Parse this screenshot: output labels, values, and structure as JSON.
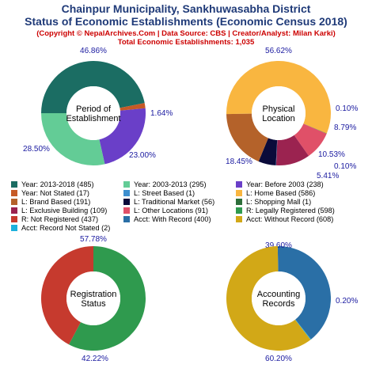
{
  "header": {
    "title_line1": "Chainpur Municipality, Sankhuwasabha District",
    "title_line2": "Status of Economic Establishments (Economic Census 2018)",
    "copyright": "(Copyright © NepalArchives.Com | Data Source: CBS | Creator/Analyst: Milan Karki)",
    "total": "Total Economic Establishments: 1,035"
  },
  "chart_data": [
    {
      "type": "pie",
      "center_label": [
        "Period of",
        "Establishment"
      ],
      "slices": [
        {
          "label": "Year: 2013-2018",
          "value": 485,
          "pct": "46.86%",
          "color": "#1b6d63"
        },
        {
          "label": "Year: Not Stated",
          "value": 17,
          "pct": "1.64%",
          "color": "#c65a26"
        },
        {
          "label": "Year: Before 2003",
          "value": 238,
          "pct": "23.00%",
          "color": "#6a3fc8"
        },
        {
          "label": "Year: 2003-2013",
          "value": 295,
          "pct": "28.50%",
          "color": "#63cc96"
        }
      ]
    },
    {
      "type": "pie",
      "center_label": [
        "Physical",
        "Location"
      ],
      "slices": [
        {
          "label": "L: Home Based",
          "value": 586,
          "pct": "56.62%",
          "color": "#f9b640"
        },
        {
          "label": "L: Shopping Mall",
          "value": 1,
          "pct": "0.10%",
          "color": "#2e6e3a"
        },
        {
          "label": "L: Other Locations",
          "value": 91,
          "pct": "8.79%",
          "color": "#e05068"
        },
        {
          "label": "L: Exclusive Building",
          "value": 109,
          "pct": "10.53%",
          "color": "#9b2350"
        },
        {
          "label": "L: Street Based",
          "value": 1,
          "pct": "0.10%",
          "color": "#3c8fcf"
        },
        {
          "label": "L: Traditional Market",
          "value": 56,
          "pct": "5.41%",
          "color": "#0b0b3a"
        },
        {
          "label": "L: Brand Based",
          "value": 191,
          "pct": "18.45%",
          "color": "#b4622a"
        }
      ]
    },
    {
      "type": "pie",
      "center_label": [
        "Registration",
        "Status"
      ],
      "slices": [
        {
          "label": "R: Legally Registered",
          "value": 598,
          "pct": "57.78%",
          "color": "#2f9a4e"
        },
        {
          "label": "R: Not Registered",
          "value": 437,
          "pct": "42.22%",
          "color": "#c63a2e"
        }
      ]
    },
    {
      "type": "pie",
      "center_label": [
        "Accounting",
        "Records"
      ],
      "slices": [
        {
          "label": "Acct: With Record",
          "value": 400,
          "pct": "39.60%",
          "color": "#2a6fa6"
        },
        {
          "label": "Acct: Record Not Stated",
          "value": 2,
          "pct": "0.20%",
          "color": "#1db0dc"
        },
        {
          "label": "Acct: Without Record",
          "value": 608,
          "pct": "60.20%",
          "color": "#d2a817"
        }
      ]
    }
  ],
  "legend": [
    [
      {
        "text": "Year: 2013-2018 (485)",
        "color": "#1b6d63"
      },
      {
        "text": "Year: 2003-2013 (295)",
        "color": "#63cc96"
      },
      {
        "text": "Year: Before 2003 (238)",
        "color": "#6a3fc8"
      }
    ],
    [
      {
        "text": "Year: Not Stated (17)",
        "color": "#c65a26"
      },
      {
        "text": "L: Street Based (1)",
        "color": "#3c8fcf"
      },
      {
        "text": "L: Home Based (586)",
        "color": "#f9b640"
      }
    ],
    [
      {
        "text": "L: Brand Based (191)",
        "color": "#b4622a"
      },
      {
        "text": "L: Traditional Market (56)",
        "color": "#0b0b3a"
      },
      {
        "text": "L: Shopping Mall (1)",
        "color": "#2e6e3a"
      }
    ],
    [
      {
        "text": "L: Exclusive Building (109)",
        "color": "#9b2350"
      },
      {
        "text": "L: Other Locations (91)",
        "color": "#e05068"
      },
      {
        "text": "R: Legally Registered (598)",
        "color": "#2f9a4e"
      }
    ],
    [
      {
        "text": "R: Not Registered (437)",
        "color": "#c63a2e"
      },
      {
        "text": "Acct: With Record (400)",
        "color": "#2a6fa6"
      },
      {
        "text": "Acct: Without Record (608)",
        "color": "#d2a817"
      }
    ],
    [
      {
        "text": "Acct: Record Not Stated (2)",
        "color": "#1db0dc"
      }
    ]
  ]
}
